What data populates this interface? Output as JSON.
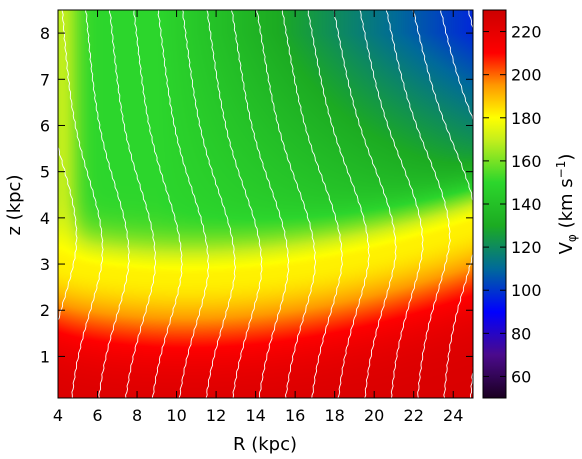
{
  "chart_data": {
    "type": "heatmap",
    "title": "",
    "xlabel": "R (kpc)",
    "ylabel": "z (kpc)",
    "xlim": [
      4,
      25
    ],
    "ylim": [
      0.1,
      8.5
    ],
    "x_ticks": [
      4,
      6,
      8,
      10,
      12,
      14,
      16,
      18,
      20,
      22,
      24
    ],
    "y_ticks": [
      1,
      2,
      3,
      4,
      5,
      6,
      7,
      8
    ],
    "colorbar": {
      "label_main": "V",
      "label_sub": "φ",
      "label_unit_open": " (km s",
      "label_unit_exp": "−1",
      "label_unit_close": ")",
      "range": [
        50,
        230
      ],
      "ticks": [
        60,
        80,
        100,
        120,
        140,
        160,
        180,
        200,
        220
      ],
      "colormap": [
        [
          50,
          "#1a0020"
        ],
        [
          70,
          "#4b0a8c"
        ],
        [
          90,
          "#0000ff"
        ],
        [
          110,
          "#006a9a"
        ],
        [
          130,
          "#1cab22"
        ],
        [
          150,
          "#2cd62c"
        ],
        [
          170,
          "#c6ef1c"
        ],
        [
          180,
          "#ffff00"
        ],
        [
          195,
          "#ff9900"
        ],
        [
          210,
          "#ff0000"
        ],
        [
          230,
          "#cc0000"
        ]
      ]
    },
    "field_description": {
      "ridge_velocity": 182,
      "disk_velocity_max": 225,
      "halo_velocity_near": 150,
      "halo_velocity_far": 110
    },
    "contour_lines": 22,
    "contours_color": "#ffffff"
  }
}
